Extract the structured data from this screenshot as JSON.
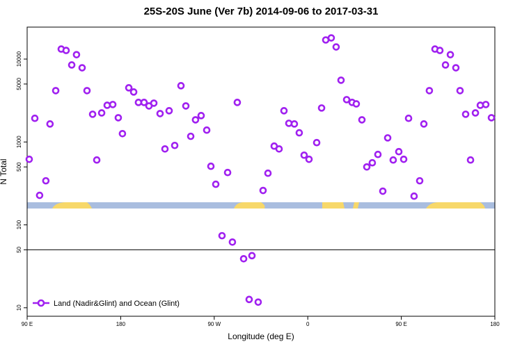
{
  "chart_data": {
    "type": "scatter",
    "title": "25S-20S June (Ver 7b)   2014-09-06 to 2017-03-31",
    "x_label": "Longitude (deg E)",
    "y_label": "N Total",
    "log_y": true,
    "xlim": [
      90,
      540
    ],
    "ylim": [
      7.9,
      24300
    ],
    "xticks": [
      {
        "value": 90,
        "label": "90 E"
      },
      180,
      {
        "value": 270,
        "label": "90 W"
      },
      {
        "value": 360,
        "label": "0"
      },
      {
        "value": 450,
        "label": "90 E"
      },
      {
        "value": 540,
        "label": "180"
      }
    ],
    "yticks": [
      10,
      50,
      100,
      500,
      1000,
      5000,
      10000
    ],
    "hline": 50,
    "legend": "bottom-left",
    "series": [
      {
        "name": "Land (Nadir&Glint) and Ocean (Glint)",
        "color": "#a020f0",
        "x": [
          92,
          97.4,
          102,
          108,
          112,
          117.5,
          122.8,
          127.5,
          132.9,
          137.5,
          142.9,
          147.6,
          153,
          157,
          161.7,
          167,
          172.4,
          177.7,
          181.7,
          187.8,
          192.5,
          197.1,
          202.5,
          207.2,
          211.9,
          217.9,
          222.6,
          226.6,
          232,
          238,
          242.7,
          247.4,
          252,
          257.4,
          262.8,
          266.8,
          271.5,
          277.5,
          282.9,
          287.5,
          292.2,
          298.3,
          303.6,
          306.3,
          312.3,
          317,
          321.7,
          327.7,
          332.4,
          337.1,
          341.8,
          347.1,
          351.8,
          356.5,
          361.2,
          368.6,
          373.3,
          377.3,
          382.6,
          387.3,
          392,
          397.4,
          402.7,
          406.7,
          412.1,
          416.8,
          422.1,
          427.5,
          432.2,
          436.9,
          442.2,
          447.6,
          452.3,
          457,
          462.3,
          467.7,
          471.7,
          477,
          482.4,
          487.1,
          492.5,
          497.2,
          502.5,
          506.5,
          511.9,
          516.6,
          521.3,
          526,
          531.3,
          536.7
        ],
        "values": [
          618,
          1930,
          227,
          340,
          1650,
          4160,
          13200,
          12700,
          8490,
          11300,
          7850,
          4160,
          2160,
          606,
          2240,
          2770,
          2830,
          1960,
          1260,
          4500,
          4010,
          3000,
          3000,
          2720,
          2940,
          2200,
          824,
          2380,
          908,
          4770,
          2720,
          1170,
          1850,
          2080,
          1390,
          509,
          309,
          74,
          428,
          62,
          3000,
          39,
          12.6,
          42.5,
          11.7,
          260,
          420,
          891,
          824,
          2380,
          1680,
          1650,
          1290,
          693,
          618,
          982,
          2570,
          17000,
          18000,
          14000,
          5560,
          3240,
          3000,
          2880,
          1850,
          500,
          561,
          707,
          255,
          1120,
          606,
          764,
          618,
          1930,
          222,
          340,
          1650,
          4160,
          13200,
          12700,
          8490,
          11300,
          7850,
          4160,
          2160,
          606,
          2240,
          2770,
          2830,
          1960
        ]
      }
    ]
  }
}
